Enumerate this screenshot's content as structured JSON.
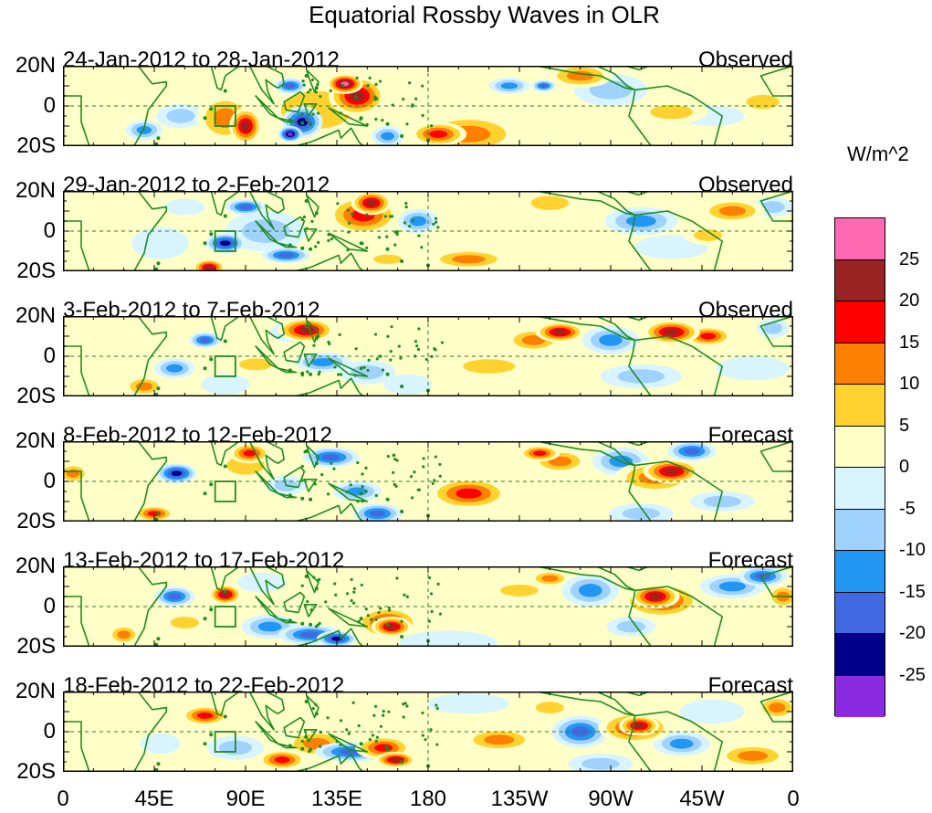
{
  "title": "Equatorial Rossby Waves in OLR",
  "chart_data": {
    "type": "heatmap",
    "title": "Equatorial Rossby Waves in OLR",
    "variable": "OLR anomaly",
    "units": "W/m^2",
    "xlabel": "",
    "ylabel": "",
    "x_range": [
      0,
      360
    ],
    "y_range": [
      -20,
      20
    ],
    "x_ticks": [
      "0",
      "45E",
      "90E",
      "135E",
      "180",
      "135W",
      "90W",
      "45W",
      "0"
    ],
    "y_ticks": [
      "20N",
      "0",
      "20S"
    ],
    "panels": [
      {
        "period": "24-Jan-2012 to 28-Jan-2012",
        "kind": "Observed",
        "blobs": [
          [
            40,
            -12,
            9,
            5,
            -15
          ],
          [
            58,
            -5,
            12,
            6,
            -10
          ],
          [
            112,
            10,
            8,
            4,
            -20
          ],
          [
            160,
            -15,
            8,
            5,
            -15
          ],
          [
            118,
            -8,
            10,
            8,
            -25
          ],
          [
            112,
            -14,
            6,
            4,
            -30
          ],
          [
            90,
            -10,
            8,
            9,
            25
          ],
          [
            80,
            -6,
            14,
            12,
            15
          ],
          [
            145,
            5,
            14,
            10,
            25
          ],
          [
            139,
            11,
            9,
            5,
            30
          ],
          [
            185,
            -14,
            14,
            6,
            20
          ],
          [
            125,
            -2,
            30,
            16,
            10
          ],
          [
            200,
            -14,
            26,
            10,
            15
          ],
          [
            220,
            10,
            10,
            4,
            -15
          ],
          [
            237,
            10,
            6,
            3,
            -20
          ],
          [
            255,
            15,
            16,
            6,
            15
          ],
          [
            270,
            8,
            18,
            8,
            -10
          ],
          [
            300,
            -3,
            18,
            6,
            10
          ],
          [
            320,
            -5,
            16,
            5,
            -5
          ],
          [
            315,
            12,
            14,
            6,
            5
          ],
          [
            345,
            2,
            14,
            6,
            10
          ],
          [
            5,
            3,
            10,
            5,
            5
          ]
        ]
      },
      {
        "period": "29-Jan-2012 to 2-Feb-2012",
        "kind": "Observed",
        "blobs": [
          [
            80,
            -6,
            10,
            5,
            -25
          ],
          [
            72,
            -18,
            8,
            4,
            25
          ],
          [
            90,
            12,
            10,
            4,
            -20
          ],
          [
            110,
            -12,
            12,
            4,
            -20
          ],
          [
            160,
            -14,
            12,
            4,
            10
          ],
          [
            148,
            8,
            18,
            10,
            20
          ],
          [
            152,
            14,
            10,
            6,
            25
          ],
          [
            175,
            5,
            10,
            6,
            -15
          ],
          [
            200,
            -14,
            20,
            5,
            15
          ],
          [
            225,
            10,
            8,
            4,
            5
          ],
          [
            240,
            14,
            16,
            6,
            10
          ],
          [
            285,
            5,
            18,
            7,
            -15
          ],
          [
            300,
            -8,
            18,
            6,
            -5
          ],
          [
            330,
            10,
            16,
            6,
            15
          ],
          [
            318,
            -2,
            12,
            5,
            10
          ],
          [
            350,
            12,
            10,
            5,
            -10
          ],
          [
            48,
            -6,
            14,
            8,
            -5
          ],
          [
            30,
            5,
            12,
            5,
            5
          ],
          [
            60,
            12,
            10,
            4,
            -5
          ],
          [
            100,
            0,
            20,
            10,
            -10
          ]
        ]
      },
      {
        "period": "3-Feb-2012 to 7-Feb-2012",
        "kind": "Observed",
        "blobs": [
          [
            70,
            8,
            8,
            4,
            -20
          ],
          [
            55,
            -6,
            10,
            5,
            -15
          ],
          [
            40,
            -15,
            10,
            5,
            15
          ],
          [
            120,
            13,
            14,
            6,
            25
          ],
          [
            112,
            12,
            10,
            5,
            -10
          ],
          [
            128,
            -3,
            14,
            5,
            -15
          ],
          [
            95,
            -4,
            14,
            5,
            10
          ],
          [
            80,
            -14,
            12,
            5,
            -5
          ],
          [
            170,
            -14,
            12,
            5,
            -5
          ],
          [
            150,
            -8,
            14,
            6,
            -10
          ],
          [
            210,
            -5,
            22,
            6,
            10
          ],
          [
            245,
            12,
            12,
            5,
            25
          ],
          [
            232,
            8,
            14,
            6,
            15
          ],
          [
            270,
            8,
            14,
            7,
            -15
          ],
          [
            300,
            12,
            14,
            6,
            25
          ],
          [
            318,
            10,
            12,
            5,
            20
          ],
          [
            285,
            -10,
            20,
            6,
            -10
          ],
          [
            340,
            -6,
            18,
            6,
            -5
          ],
          [
            350,
            14,
            8,
            5,
            -10
          ],
          [
            20,
            14,
            12,
            5,
            5
          ]
        ]
      },
      {
        "period": "8-Feb-2012 to 12-Feb-2012",
        "kind": "Forecast",
        "blobs": [
          [
            56,
            4,
            10,
            5,
            -25
          ],
          [
            45,
            -16,
            10,
            4,
            20
          ],
          [
            92,
            14,
            10,
            5,
            20
          ],
          [
            90,
            8,
            16,
            8,
            10
          ],
          [
            132,
            12,
            14,
            5,
            -20
          ],
          [
            110,
            -2,
            10,
            5,
            -10
          ],
          [
            145,
            -5,
            12,
            5,
            -15
          ],
          [
            155,
            -16,
            12,
            5,
            -20
          ],
          [
            110,
            -16,
            12,
            5,
            5
          ],
          [
            200,
            -6,
            20,
            8,
            20
          ],
          [
            245,
            10,
            14,
            6,
            15
          ],
          [
            235,
            14,
            10,
            4,
            20
          ],
          [
            275,
            10,
            14,
            7,
            -15
          ],
          [
            300,
            5,
            14,
            6,
            25
          ],
          [
            292,
            2,
            20,
            8,
            15
          ],
          [
            310,
            15,
            12,
            5,
            -20
          ],
          [
            285,
            -16,
            16,
            5,
            -10
          ],
          [
            325,
            -10,
            16,
            5,
            -10
          ],
          [
            5,
            4,
            8,
            5,
            15
          ],
          [
            230,
            -14,
            20,
            6,
            5
          ]
        ]
      },
      {
        "period": "13-Feb-2012 to 17-Feb-2012",
        "kind": "Forecast",
        "blobs": [
          [
            80,
            6,
            8,
            5,
            25
          ],
          [
            55,
            5,
            10,
            5,
            -20
          ],
          [
            60,
            -8,
            12,
            5,
            10
          ],
          [
            30,
            -14,
            8,
            5,
            15
          ],
          [
            102,
            -10,
            14,
            6,
            -15
          ],
          [
            122,
            -14,
            16,
            5,
            -20
          ],
          [
            160,
            -8,
            16,
            8,
            20
          ],
          [
            162,
            -10,
            10,
            5,
            25
          ],
          [
            135,
            -16,
            10,
            4,
            -25
          ],
          [
            225,
            8,
            16,
            5,
            10
          ],
          [
            240,
            14,
            10,
            4,
            15
          ],
          [
            260,
            8,
            14,
            8,
            -15
          ],
          [
            280,
            -10,
            12,
            5,
            -10
          ],
          [
            295,
            3,
            20,
            9,
            20
          ],
          [
            292,
            5,
            12,
            6,
            25
          ],
          [
            330,
            10,
            16,
            6,
            -15
          ],
          [
            345,
            15,
            12,
            5,
            -20
          ],
          [
            355,
            5,
            8,
            6,
            15
          ],
          [
            98,
            12,
            12,
            5,
            -5
          ],
          [
            190,
            -18,
            24,
            6,
            -5
          ]
        ]
      },
      {
        "period": "18-Feb-2012 to 22-Feb-2012",
        "kind": "Forecast",
        "blobs": [
          [
            70,
            8,
            12,
            5,
            20
          ],
          [
            48,
            -6,
            10,
            5,
            -5
          ],
          [
            85,
            -8,
            14,
            6,
            -10
          ],
          [
            108,
            -14,
            12,
            5,
            20
          ],
          [
            125,
            -6,
            16,
            7,
            15
          ],
          [
            142,
            -10,
            18,
            5,
            -20
          ],
          [
            158,
            -8,
            14,
            6,
            20
          ],
          [
            164,
            -14,
            10,
            4,
            25
          ],
          [
            215,
            -4,
            18,
            6,
            15
          ],
          [
            240,
            12,
            12,
            5,
            10
          ],
          [
            255,
            0,
            14,
            8,
            -20
          ],
          [
            282,
            2,
            18,
            8,
            20
          ],
          [
            284,
            3,
            10,
            5,
            25
          ],
          [
            305,
            -6,
            14,
            6,
            -15
          ],
          [
            320,
            10,
            16,
            6,
            -5
          ],
          [
            340,
            -12,
            18,
            6,
            15
          ],
          [
            352,
            12,
            10,
            6,
            15
          ],
          [
            20,
            14,
            14,
            5,
            5
          ],
          [
            200,
            14,
            20,
            5,
            -5
          ],
          [
            265,
            -16,
            16,
            5,
            -10
          ]
        ]
      }
    ],
    "legend": {
      "title": "W/m^2",
      "levels": [
        "25",
        "20",
        "15",
        "10",
        "5",
        "0",
        "-5",
        "-10",
        "-15",
        "-20",
        "-25"
      ],
      "colors": [
        "#ff69b4",
        "#9a2424",
        "#ff0000",
        "#ff7f00",
        "#ffd230",
        "#ffffc8",
        "#d7f4ff",
        "#a0d2ff",
        "#2196f3",
        "#4169e1",
        "#00008b",
        "#8a2be2"
      ]
    },
    "palette": {
      "p30": "#ff69b4",
      "p25": "#9a2424",
      "p20": "#ff0000",
      "p15": "#ff7f00",
      "p10": "#ffd230",
      "p5": "#ffffc8",
      "n5": "#d7f4ff",
      "n10": "#a0d2ff",
      "n15": "#2196f3",
      "n20": "#4169e1",
      "n25": "#00008b",
      "n30": "#8a2be2",
      "land": "#1e8c1e",
      "ref_line": "#2a7a2a"
    }
  }
}
